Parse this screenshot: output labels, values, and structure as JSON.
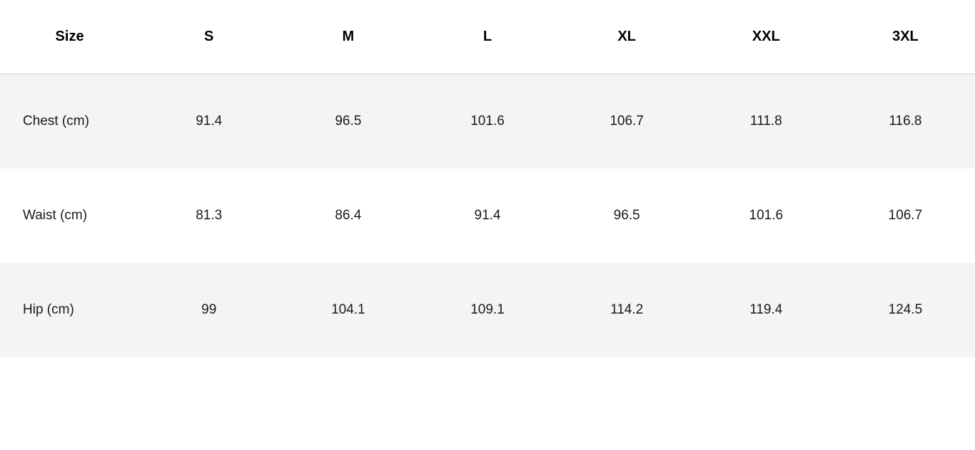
{
  "table": {
    "type": "table",
    "background_color": "#ffffff",
    "stripe_color": "#f4f4f4",
    "border_color": "#d0d0d0",
    "header_font_weight": 700,
    "header_font_size": 20,
    "body_font_size": 19,
    "text_color": "#1a1a1a",
    "columns": [
      "Size",
      "S",
      "M",
      "L",
      "XL",
      "XXL",
      "3XL"
    ],
    "rows": [
      {
        "label": "Chest (cm)",
        "values": [
          "91.4",
          "96.5",
          "101.6",
          "106.7",
          "111.8",
          "116.8"
        ],
        "striped": true
      },
      {
        "label": "Waist (cm)",
        "values": [
          "81.3",
          "86.4",
          "91.4",
          "96.5",
          "101.6",
          "106.7"
        ],
        "striped": false
      },
      {
        "label": "Hip (cm)",
        "values": [
          "99",
          "104.1",
          "109.1",
          "114.2",
          "119.4",
          "124.5"
        ],
        "striped": true
      }
    ]
  }
}
